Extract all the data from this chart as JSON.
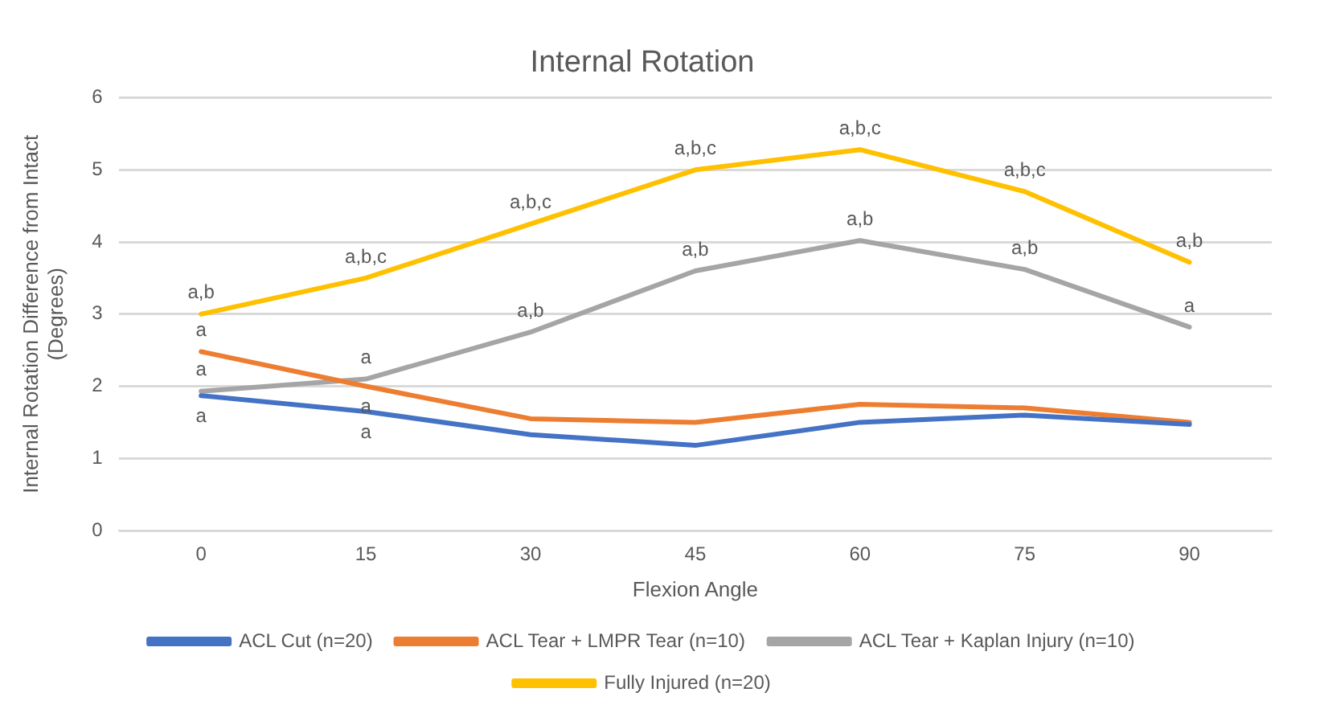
{
  "chart_data": {
    "type": "line",
    "title": "Internal Rotation",
    "xlabel": "Flexion Angle",
    "ylabel": "Internal Rotation Difference from Intact (Degrees)",
    "categories": [
      "0",
      "15",
      "30",
      "45",
      "60",
      "75",
      "90"
    ],
    "series": [
      {
        "name": "ACL Cut (n=20)",
        "color": "#4472c4",
        "values": [
          1.87,
          1.65,
          1.33,
          1.18,
          1.5,
          1.6,
          1.47
        ]
      },
      {
        "name": "ACL Tear + LMPR Tear (n=10)",
        "color": "#ed7d31",
        "values": [
          2.48,
          2.0,
          1.55,
          1.5,
          1.75,
          1.7,
          1.5
        ]
      },
      {
        "name": "ACL Tear + Kaplan Injury (n=10)",
        "color": "#a5a5a5",
        "values": [
          1.93,
          2.1,
          2.75,
          3.6,
          4.02,
          3.62,
          2.82
        ]
      },
      {
        "name": "Fully Injured (n=20)",
        "color": "#ffc000",
        "values": [
          3.0,
          3.5,
          4.25,
          5.0,
          5.28,
          4.7,
          3.72
        ]
      }
    ],
    "ylim": [
      0,
      6
    ],
    "yticks": [
      0,
      1,
      2,
      3,
      4,
      5,
      6
    ],
    "grid": "y",
    "legend": "bottom",
    "marker": "none",
    "line_style": "solid",
    "annotations": [
      {
        "text": "a,b",
        "x": "0",
        "y": 3.0
      },
      {
        "text": "a",
        "x": "0",
        "y": 2.48
      },
      {
        "text": "a",
        "x": "0",
        "y": 1.93
      },
      {
        "text": "a",
        "x": "0",
        "y": 1.87
      },
      {
        "text": "a,b,c",
        "x": "15",
        "y": 3.5
      },
      {
        "text": "a",
        "x": "15",
        "y": 2.1
      },
      {
        "text": "a",
        "x": "15",
        "y": 2.0
      },
      {
        "text": "a",
        "x": "15",
        "y": 1.65
      },
      {
        "text": "a,b,c",
        "x": "30",
        "y": 4.25
      },
      {
        "text": "a,b",
        "x": "30",
        "y": 2.75
      },
      {
        "text": "a,b,c",
        "x": "45",
        "y": 5.0
      },
      {
        "text": "a,b",
        "x": "45",
        "y": 3.6
      },
      {
        "text": "a,b,c",
        "x": "60",
        "y": 5.28
      },
      {
        "text": "a,b",
        "x": "60",
        "y": 4.02
      },
      {
        "text": "a,b,c",
        "x": "75",
        "y": 4.7
      },
      {
        "text": "a,b",
        "x": "75",
        "y": 3.62
      },
      {
        "text": "a,b",
        "x": "90",
        "y": 3.72
      },
      {
        "text": "a",
        "x": "90",
        "y": 2.82
      }
    ]
  }
}
